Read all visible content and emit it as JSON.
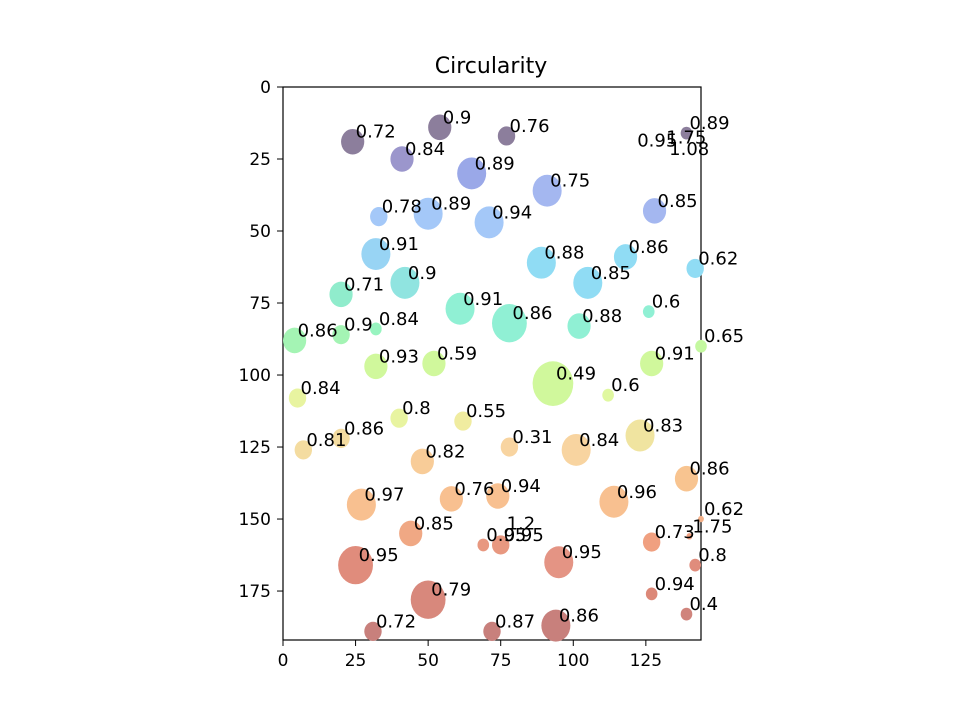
{
  "chart_data": {
    "type": "scatter",
    "title": "Circularity",
    "xlim": [
      0,
      144
    ],
    "ylim": [
      192,
      0
    ],
    "y_inverted": true,
    "xticks": [
      0,
      25,
      50,
      75,
      100,
      125
    ],
    "yticks": [
      0,
      25,
      50,
      75,
      100,
      125,
      150,
      175
    ],
    "grid": false,
    "blobs": [
      {
        "x": 24,
        "y": 19,
        "r": 4,
        "value": "0.72",
        "color": "#8c7e9c"
      },
      {
        "x": 54,
        "y": 14,
        "r": 4,
        "value": "0.9",
        "color": "#8c7e9c"
      },
      {
        "x": 77,
        "y": 17,
        "r": 3,
        "value": "0.76",
        "color": "#8c7e9c"
      },
      {
        "x": 139,
        "y": 16,
        "r": 2,
        "value": "0.89",
        "color": "#8c7e9c"
      },
      {
        "x": 41,
        "y": 25,
        "r": 4,
        "value": "0.84",
        "color": "#9b96cc"
      },
      {
        "x": 65,
        "y": 30,
        "r": 5,
        "value": "0.89",
        "color": "#9aa8e8"
      },
      {
        "x": 91,
        "y": 36,
        "r": 5,
        "value": "0.75",
        "color": "#a4b7f0"
      },
      {
        "x": 121,
        "y": 22,
        "r": 0,
        "value": "0.95",
        "color": "#a4b7f0"
      },
      {
        "x": 131,
        "y": 21,
        "r": 0,
        "value": "1.75",
        "color": "#a4b7f0"
      },
      {
        "x": 132,
        "y": 25,
        "r": 0,
        "value": "1.08",
        "color": "#a4b7f0"
      },
      {
        "x": 128,
        "y": 43,
        "r": 4,
        "value": "0.85",
        "color": "#a4b7f0"
      },
      {
        "x": 33,
        "y": 45,
        "r": 3,
        "value": "0.78",
        "color": "#a4c8f8"
      },
      {
        "x": 50,
        "y": 44,
        "r": 5,
        "value": "0.89",
        "color": "#a4c8f8"
      },
      {
        "x": 71,
        "y": 47,
        "r": 5,
        "value": "0.94",
        "color": "#a4c8f8"
      },
      {
        "x": 32,
        "y": 58,
        "r": 5,
        "value": "0.91",
        "color": "#98d4f4"
      },
      {
        "x": 89,
        "y": 61,
        "r": 5,
        "value": "0.88",
        "color": "#90dcf4"
      },
      {
        "x": 118,
        "y": 59,
        "r": 4,
        "value": "0.86",
        "color": "#90dcf4"
      },
      {
        "x": 142,
        "y": 63,
        "r": 3,
        "value": "0.62",
        "color": "#90dcf4"
      },
      {
        "x": 42,
        "y": 68,
        "r": 5,
        "value": "0.9",
        "color": "#90e4e0"
      },
      {
        "x": 20,
        "y": 72,
        "r": 4,
        "value": "0.71",
        "color": "#90eccc"
      },
      {
        "x": 105,
        "y": 68,
        "r": 5,
        "value": "0.85",
        "color": "#90dcf4"
      },
      {
        "x": 61,
        "y": 77,
        "r": 5,
        "value": "0.91",
        "color": "#90f0d4"
      },
      {
        "x": 126,
        "y": 78,
        "r": 2,
        "value": "0.6",
        "color": "#90f0d4"
      },
      {
        "x": 78,
        "y": 82,
        "r": 6,
        "value": "0.86",
        "color": "#90f0d4"
      },
      {
        "x": 102,
        "y": 83,
        "r": 4,
        "value": "0.88",
        "color": "#90f0d4"
      },
      {
        "x": 32,
        "y": 84,
        "r": 2,
        "value": "0.84",
        "color": "#98f4c0"
      },
      {
        "x": 4,
        "y": 88,
        "r": 4,
        "value": "0.86",
        "color": "#a4f4b4"
      },
      {
        "x": 20,
        "y": 86,
        "r": 3,
        "value": "0.9",
        "color": "#a4f4b4"
      },
      {
        "x": 144,
        "y": 90,
        "r": 2,
        "value": "0.65",
        "color": "#c4f8a0"
      },
      {
        "x": 32,
        "y": 97,
        "r": 4,
        "value": "0.93",
        "color": "#d0f89c"
      },
      {
        "x": 52,
        "y": 96,
        "r": 4,
        "value": "0.59",
        "color": "#d0f89c"
      },
      {
        "x": 127,
        "y": 96,
        "r": 4,
        "value": "0.91",
        "color": "#d0f89c"
      },
      {
        "x": 93,
        "y": 103,
        "r": 7,
        "value": "0.49",
        "color": "#d0f89c"
      },
      {
        "x": 112,
        "y": 107,
        "r": 2,
        "value": "0.6",
        "color": "#e0f8a0"
      },
      {
        "x": 5,
        "y": 108,
        "r": 3,
        "value": "0.84",
        "color": "#e8f4a0"
      },
      {
        "x": 40,
        "y": 115,
        "r": 3,
        "value": "0.8",
        "color": "#e8f4a0"
      },
      {
        "x": 62,
        "y": 116,
        "r": 3,
        "value": "0.55",
        "color": "#f0eca0"
      },
      {
        "x": 123,
        "y": 121,
        "r": 5,
        "value": "0.83",
        "color": "#f0e4a0"
      },
      {
        "x": 20,
        "y": 122,
        "r": 3,
        "value": "0.86",
        "color": "#f4dca0"
      },
      {
        "x": 7,
        "y": 126,
        "r": 3,
        "value": "0.81",
        "color": "#f4dca0"
      },
      {
        "x": 101,
        "y": 126,
        "r": 5,
        "value": "0.84",
        "color": "#f8d4a0"
      },
      {
        "x": 78,
        "y": 125,
        "r": 3,
        "value": "0.31",
        "color": "#f8d4a0"
      },
      {
        "x": 48,
        "y": 130,
        "r": 4,
        "value": "0.82",
        "color": "#f8cc98"
      },
      {
        "x": 139,
        "y": 136,
        "r": 4,
        "value": "0.86",
        "color": "#f8c490"
      },
      {
        "x": 27,
        "y": 145,
        "r": 5,
        "value": "0.97",
        "color": "#f8c090"
      },
      {
        "x": 58,
        "y": 143,
        "r": 4,
        "value": "0.76",
        "color": "#f8c090"
      },
      {
        "x": 74,
        "y": 142,
        "r": 4,
        "value": "0.94",
        "color": "#f8c090"
      },
      {
        "x": 114,
        "y": 144,
        "r": 5,
        "value": "0.96",
        "color": "#f8c090"
      },
      {
        "x": 144,
        "y": 150,
        "r": 1,
        "value": "0.62",
        "color": "#f4b088"
      },
      {
        "x": 44,
        "y": 155,
        "r": 4,
        "value": "0.85",
        "color": "#f0a884"
      },
      {
        "x": 76,
        "y": 155,
        "r": 0,
        "value": "1.2",
        "color": "#f0a884"
      },
      {
        "x": 69,
        "y": 159,
        "r": 2,
        "value": "0.95",
        "color": "#e89880"
      },
      {
        "x": 75,
        "y": 159,
        "r": 3,
        "value": "0.95",
        "color": "#e89880"
      },
      {
        "x": 127,
        "y": 158,
        "r": 3,
        "value": "0.73",
        "color": "#f0a080"
      },
      {
        "x": 140,
        "y": 156,
        "r": 1,
        "value": "1.75",
        "color": "#f0a080"
      },
      {
        "x": 95,
        "y": 165,
        "r": 5,
        "value": "0.95",
        "color": "#e49484"
      },
      {
        "x": 25,
        "y": 166,
        "r": 6,
        "value": "0.95",
        "color": "#e08c7c"
      },
      {
        "x": 142,
        "y": 166,
        "r": 2,
        "value": "0.8",
        "color": "#e08c7c"
      },
      {
        "x": 127,
        "y": 176,
        "r": 2,
        "value": "0.94",
        "color": "#dc8878"
      },
      {
        "x": 50,
        "y": 178,
        "r": 6,
        "value": "0.79",
        "color": "#d8887c"
      },
      {
        "x": 139,
        "y": 183,
        "r": 2,
        "value": "0.4",
        "color": "#d0847c"
      },
      {
        "x": 31,
        "y": 189,
        "r": 3,
        "value": "0.72",
        "color": "#c8807c"
      },
      {
        "x": 72,
        "y": 189,
        "r": 3,
        "value": "0.87",
        "color": "#c8807c"
      },
      {
        "x": 94,
        "y": 187,
        "r": 5,
        "value": "0.86",
        "color": "#c8807c"
      }
    ]
  }
}
